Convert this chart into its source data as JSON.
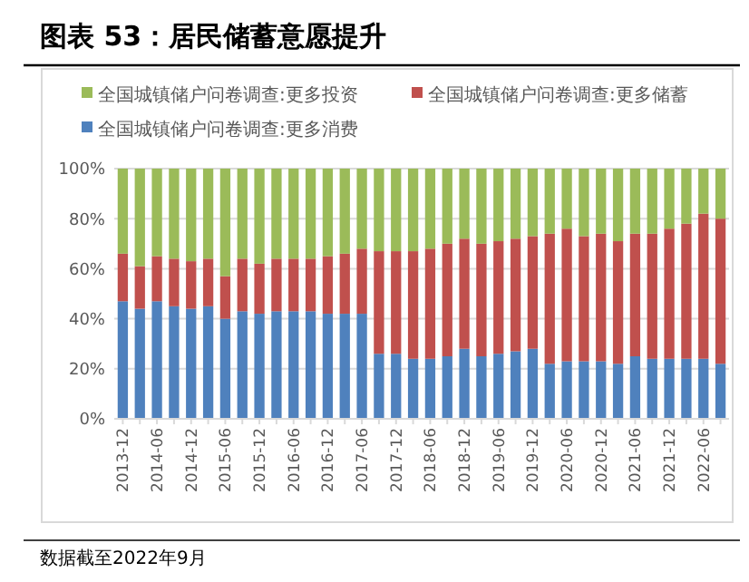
{
  "chart_data": {
    "type": "bar",
    "title": "图表 53：居民储蓄意愿提升",
    "stacked": true,
    "legend": "top",
    "grid": "y",
    "categories": [
      "2013-12",
      null,
      "2014-06",
      null,
      "2014-12",
      null,
      "2015-06",
      null,
      "2015-12",
      null,
      "2016-06",
      null,
      "2016-12",
      null,
      "2017-06",
      null,
      "2017-12",
      null,
      "2018-06",
      null,
      "2018-12",
      null,
      "2019-06",
      null,
      "2019-12",
      null,
      "2020-06",
      null,
      "2020-12",
      null,
      "2021-06",
      null,
      "2021-12",
      null,
      "2022-06",
      null
    ],
    "ylim": [
      0,
      100
    ],
    "yticks": [
      {
        "value": 0,
        "label": "0%"
      },
      {
        "value": 20,
        "label": "20%"
      },
      {
        "value": 40,
        "label": "40%"
      },
      {
        "value": 60,
        "label": "60%"
      },
      {
        "value": 80,
        "label": "80%"
      },
      {
        "value": 100,
        "label": "100%"
      }
    ],
    "series": [
      {
        "name": "全国城镇储户问卷调查:更多消费",
        "color": "#4f81bd",
        "values": [
          47,
          44,
          47,
          45,
          44,
          45,
          40,
          43,
          42,
          43,
          43,
          43,
          42,
          42,
          42,
          26,
          26,
          24,
          24,
          25,
          28,
          25,
          26,
          27,
          28,
          22,
          23,
          23,
          23,
          22,
          25,
          24,
          24,
          24,
          24,
          22
        ]
      },
      {
        "name": "全国城镇储户问卷调查:更多储蓄",
        "color": "#c0504d",
        "values": [
          19,
          17,
          18,
          19,
          19,
          19,
          17,
          21,
          20,
          21,
          21,
          21,
          23,
          24,
          26,
          41,
          41,
          43,
          44,
          45,
          44,
          45,
          45,
          45,
          45,
          52,
          53,
          50,
          51,
          49,
          49,
          50,
          52,
          54,
          58,
          58
        ]
      },
      {
        "name": "全国城镇储户问卷调查:更多投资",
        "color": "#9bbb59",
        "values": [
          34,
          39,
          35,
          36,
          37,
          36,
          43,
          36,
          38,
          36,
          36,
          36,
          35,
          34,
          32,
          33,
          33,
          33,
          32,
          30,
          28,
          30,
          29,
          28,
          27,
          26,
          24,
          27,
          26,
          29,
          26,
          26,
          24,
          22,
          18,
          20
        ]
      }
    ],
    "annotations": [
      "数据截至2022年9月"
    ]
  }
}
